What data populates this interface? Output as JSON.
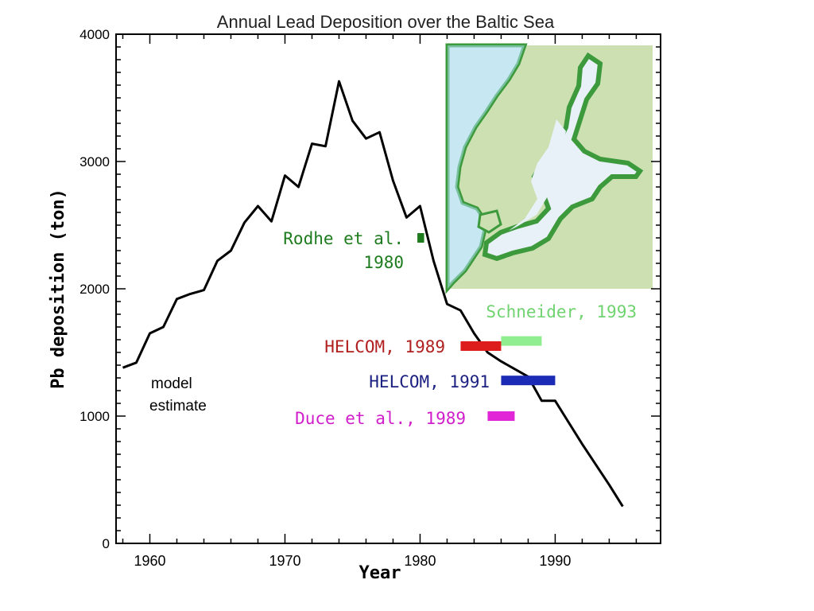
{
  "chart_data": {
    "type": "line",
    "title": "Annual Lead Deposition over the Baltic Sea",
    "xlabel": "Year",
    "ylabel": "Pb deposition (ton)",
    "xlim": [
      1957.5,
      1997.8
    ],
    "ylim": [
      0,
      4000
    ],
    "x_ticks": [
      "1960",
      "1970",
      "1980",
      "1990"
    ],
    "y_ticks": [
      "0",
      "1000",
      "2000",
      "3000",
      "4000"
    ],
    "grid": false,
    "series": [
      {
        "name": "model estimate",
        "color": "#000000",
        "x": [
          1958,
          1959,
          1960,
          1961,
          1962,
          1963,
          1964,
          1965,
          1966,
          1967,
          1968,
          1969,
          1970,
          1971,
          1972,
          1973,
          1974,
          1975,
          1976,
          1977,
          1978,
          1979,
          1980,
          1981,
          1982,
          1983,
          1984,
          1985,
          1986,
          1987,
          1988,
          1989,
          1990,
          1991,
          1992,
          1993,
          1994,
          1995
        ],
        "y": [
          1380,
          1420,
          1650,
          1700,
          1920,
          1960,
          1990,
          2220,
          2300,
          2520,
          2650,
          2530,
          2890,
          2800,
          3140,
          3120,
          3630,
          3320,
          3180,
          3230,
          2850,
          2560,
          2650,
          2220,
          1880,
          1830,
          1650,
          1500,
          1430,
          1370,
          1310,
          1120,
          1120,
          950,
          780,
          620,
          460,
          290
        ]
      }
    ],
    "estimates": [
      {
        "label": "Rodhe et al., 1980",
        "color": "#1e7b1e",
        "x_start": 1979.8,
        "x_end": 1980.3,
        "y": 2400
      },
      {
        "label": "Schneider, 1993",
        "color": "#90ee90",
        "x_start": 1986,
        "x_end": 1989,
        "y": 1590
      },
      {
        "label": "HELCOM, 1989",
        "color": "#dd1c1c",
        "x_start": 1983,
        "x_end": 1986,
        "y": 1550
      },
      {
        "label": "HELCOM, 1991",
        "color": "#1c2bb5",
        "x_start": 1986,
        "x_end": 1990,
        "y": 1280
      },
      {
        "label": "Duce et al., 1989",
        "color": "#e026d6",
        "x_start": 1985,
        "x_end": 1987,
        "y": 1000
      }
    ],
    "annotations": {
      "model": "model\nestimate",
      "rodhe_line1": "Rodhe et al.",
      "rodhe_line2": "1980",
      "schneider": "Schneider, 1993",
      "helcom89": "HELCOM, 1989",
      "helcom91": "HELCOM, 1991",
      "duce": "Duce et al., 1989"
    },
    "inset_map": {
      "description_icon": "baltic-sea-map-icon",
      "land_color": "#cce0b2",
      "sea_color": "#e8f1f7",
      "coast_color": "#3c9a3c"
    }
  }
}
